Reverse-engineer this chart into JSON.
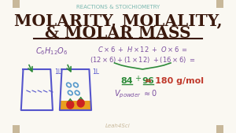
{
  "bg_color": "#faf8f2",
  "border_color": "#c8b89a",
  "top_label": "REACTIONS & STOICHIOMETRY",
  "top_label_color": "#7ab8b0",
  "title_line1": "MOLARITY, MOLALITY,",
  "title_line2": "& MOLAR MASS",
  "title_color": "#3b1a0e",
  "underline_color": "#3b1a0e",
  "formula": "C₆H₁₂O₆",
  "formula_color": "#7b4fa0",
  "eq_line1": "C x 6  +  H x12  +  O x 6  =",
  "eq_line2": "(12 x 6) + (1 x 12)  +(16 x 6)  =",
  "eq_color": "#7b4fa0",
  "brace_color": "#2e8b3a",
  "result_84": "84",
  "result_96": "96",
  "result_color": "#2e8b3a",
  "equals_180": "= 180 g/mol",
  "equals_color": "#c0392b",
  "vpowder": "V",
  "vpowder_sub": "powder",
  "vpowder_val": " ≈0",
  "vpowder_color": "#7b4fa0",
  "watermark": "Leah4Sci",
  "watermark_color": "#c8b89a",
  "cup1_color": "#5555cc",
  "cup2_color": "#5555cc",
  "cup2_border_color": "#cc8822",
  "arrow_color": "#2e8b3a",
  "label_1L": "#5555cc"
}
